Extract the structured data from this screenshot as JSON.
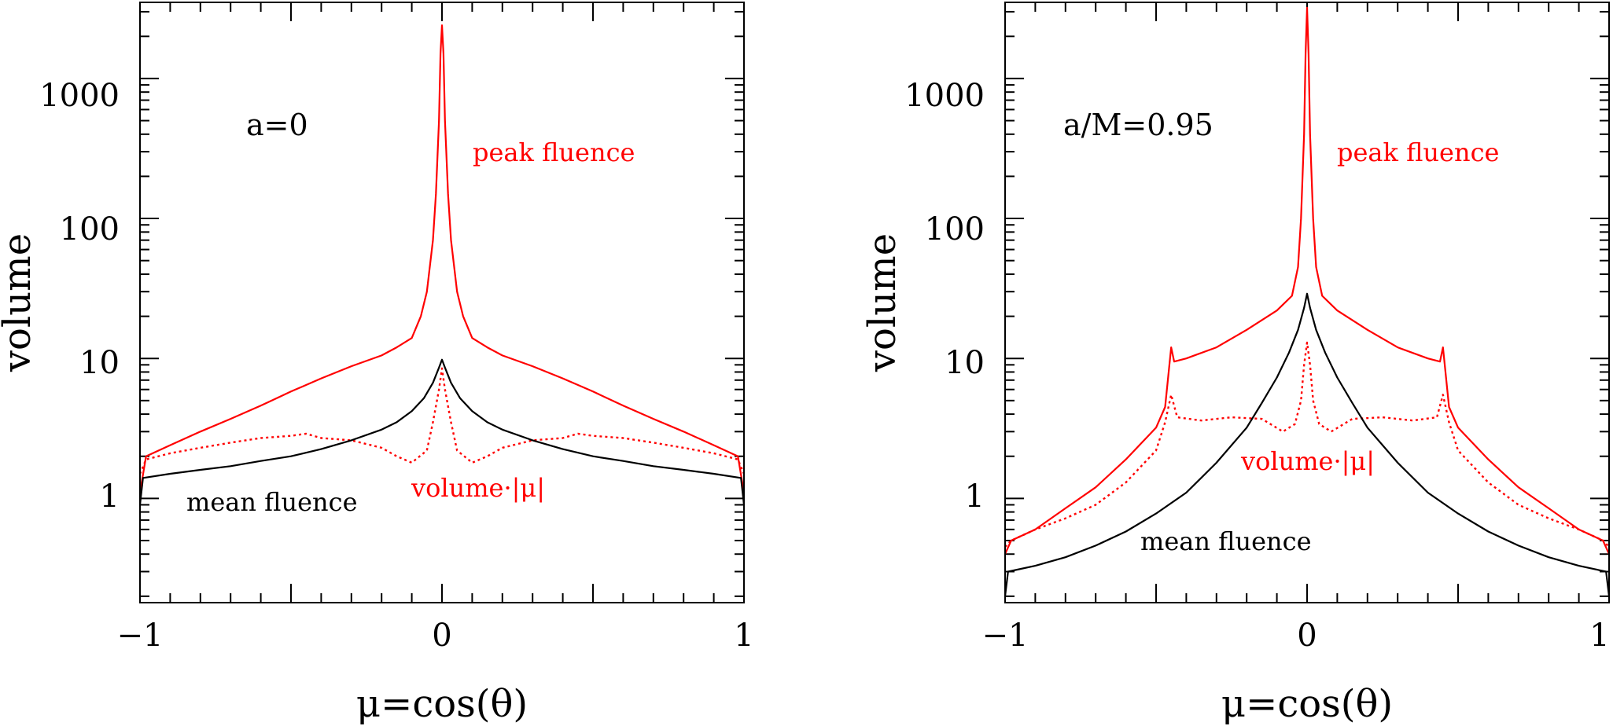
{
  "chart_data": [
    {
      "type": "line",
      "panel_label": "a=0",
      "ylabel": "volume",
      "xlabel": "μ=cos(θ)",
      "yscale": "log",
      "xlim": [
        -1,
        1
      ],
      "ylim": [
        0.18,
        3500
      ],
      "x_ticks": [
        "−1",
        "0",
        "1"
      ],
      "y_ticks": [
        "1",
        "10",
        "100",
        "1000"
      ],
      "annotations": {
        "peak": "peak fluence",
        "mean": "mean fluence",
        "volmu": "volume·|μ|"
      },
      "series": [
        {
          "name": "peak fluence",
          "color": "#ff0000",
          "style": "solid",
          "x": [
            -1,
            -0.98,
            -0.9,
            -0.8,
            -0.7,
            -0.6,
            -0.5,
            -0.4,
            -0.3,
            -0.2,
            -0.15,
            -0.1,
            -0.07,
            -0.05,
            -0.03,
            -0.02,
            -0.01,
            -0.005,
            0,
            0.005,
            0.01,
            0.02,
            0.03,
            0.05,
            0.07,
            0.1,
            0.15,
            0.2,
            0.3,
            0.4,
            0.5,
            0.6,
            0.7,
            0.8,
            0.9,
            0.98,
            1
          ],
          "y": [
            1.1,
            2.0,
            2.4,
            3.0,
            3.7,
            4.6,
            5.8,
            7.2,
            8.8,
            10.5,
            12,
            14,
            20,
            30,
            70,
            150,
            500,
            1500,
            2400,
            1500,
            500,
            150,
            70,
            30,
            20,
            14,
            12,
            10.5,
            8.8,
            7.2,
            5.8,
            4.6,
            3.7,
            3.0,
            2.4,
            2.0,
            1.1
          ]
        },
        {
          "name": "volume·|μ|",
          "color": "#ff0000",
          "style": "dotted",
          "x": [
            -1,
            -0.98,
            -0.9,
            -0.8,
            -0.7,
            -0.6,
            -0.5,
            -0.45,
            -0.4,
            -0.3,
            -0.2,
            -0.15,
            -0.1,
            -0.05,
            -0.03,
            -0.01,
            0,
            0.01,
            0.03,
            0.05,
            0.1,
            0.15,
            0.2,
            0.3,
            0.4,
            0.45,
            0.5,
            0.6,
            0.7,
            0.8,
            0.9,
            0.98,
            1
          ],
          "y": [
            1.5,
            1.9,
            2.1,
            2.3,
            2.5,
            2.7,
            2.8,
            2.9,
            2.7,
            2.6,
            2.3,
            2.0,
            1.8,
            2.2,
            3.5,
            6,
            8.5,
            6,
            3.5,
            2.2,
            1.8,
            2.0,
            2.3,
            2.6,
            2.7,
            2.9,
            2.8,
            2.7,
            2.5,
            2.3,
            2.1,
            1.9,
            1.5
          ]
        },
        {
          "name": "mean fluence",
          "color": "#000000",
          "style": "solid",
          "x": [
            -1,
            -0.99,
            -0.9,
            -0.8,
            -0.7,
            -0.6,
            -0.5,
            -0.4,
            -0.3,
            -0.2,
            -0.15,
            -0.1,
            -0.06,
            -0.03,
            -0.01,
            0,
            0.01,
            0.03,
            0.06,
            0.1,
            0.15,
            0.2,
            0.3,
            0.4,
            0.5,
            0.6,
            0.7,
            0.8,
            0.9,
            0.99,
            1
          ],
          "y": [
            0.9,
            1.4,
            1.5,
            1.6,
            1.7,
            1.85,
            2.0,
            2.25,
            2.6,
            3.1,
            3.5,
            4.2,
            5.2,
            6.7,
            8.6,
            9.8,
            8.6,
            6.7,
            5.2,
            4.2,
            3.5,
            3.1,
            2.6,
            2.25,
            2.0,
            1.85,
            1.7,
            1.6,
            1.5,
            1.4,
            0.9
          ]
        }
      ]
    },
    {
      "type": "line",
      "panel_label": "a/M=0.95",
      "ylabel": "volume",
      "xlabel": "μ=cos(θ)",
      "yscale": "log",
      "xlim": [
        -1,
        1
      ],
      "ylim": [
        0.18,
        3500
      ],
      "x_ticks": [
        "−1",
        "0",
        "1"
      ],
      "y_ticks": [
        "1",
        "10",
        "100",
        "1000"
      ],
      "annotations": {
        "peak": "peak fluence",
        "mean": "mean fluence",
        "volmu": "volume·|μ|"
      },
      "series": [
        {
          "name": "peak fluence",
          "color": "#ff0000",
          "style": "solid",
          "x": [
            -1,
            -0.98,
            -0.9,
            -0.8,
            -0.7,
            -0.6,
            -0.5,
            -0.47,
            -0.45,
            -0.44,
            -0.4,
            -0.3,
            -0.2,
            -0.1,
            -0.05,
            -0.03,
            -0.02,
            -0.01,
            -0.005,
            0,
            0.005,
            0.01,
            0.02,
            0.03,
            0.05,
            0.1,
            0.2,
            0.3,
            0.4,
            0.44,
            0.45,
            0.47,
            0.5,
            0.6,
            0.7,
            0.8,
            0.9,
            0.98,
            1
          ],
          "y": [
            0.4,
            0.5,
            0.6,
            0.85,
            1.2,
            1.9,
            3.2,
            4.5,
            12,
            9.5,
            10,
            12,
            16,
            22,
            28,
            45,
            100,
            400,
            1500,
            3200,
            1500,
            400,
            100,
            45,
            28,
            22,
            16,
            12,
            10,
            9.5,
            12,
            4.5,
            3.2,
            1.9,
            1.2,
            0.85,
            0.6,
            0.5,
            0.4
          ]
        },
        {
          "name": "volume·|μ|",
          "color": "#ff0000",
          "style": "dotted",
          "x": [
            -1,
            -0.98,
            -0.9,
            -0.8,
            -0.7,
            -0.6,
            -0.5,
            -0.47,
            -0.45,
            -0.43,
            -0.35,
            -0.25,
            -0.15,
            -0.08,
            -0.04,
            -0.02,
            -0.01,
            0,
            0.01,
            0.02,
            0.04,
            0.08,
            0.15,
            0.25,
            0.35,
            0.43,
            0.45,
            0.47,
            0.5,
            0.6,
            0.7,
            0.8,
            0.9,
            0.98,
            1
          ],
          "y": [
            0.45,
            0.5,
            0.6,
            0.72,
            0.9,
            1.3,
            2.2,
            3.5,
            5.5,
            3.8,
            3.6,
            3.8,
            3.7,
            3.0,
            3.4,
            5,
            9,
            13,
            9,
            5,
            3.4,
            3.0,
            3.7,
            3.8,
            3.6,
            3.8,
            5.5,
            3.5,
            2.2,
            1.3,
            0.9,
            0.72,
            0.6,
            0.5,
            0.45
          ]
        },
        {
          "name": "mean fluence",
          "color": "#000000",
          "style": "solid",
          "x": [
            -1,
            -0.99,
            -0.9,
            -0.8,
            -0.7,
            -0.6,
            -0.5,
            -0.4,
            -0.3,
            -0.2,
            -0.15,
            -0.1,
            -0.06,
            -0.03,
            -0.01,
            0,
            0.01,
            0.03,
            0.06,
            0.1,
            0.15,
            0.2,
            0.3,
            0.4,
            0.5,
            0.6,
            0.7,
            0.8,
            0.9,
            0.99,
            1
          ],
          "y": [
            0.2,
            0.3,
            0.33,
            0.38,
            0.46,
            0.58,
            0.78,
            1.1,
            1.8,
            3.2,
            4.8,
            7.3,
            11,
            16,
            23,
            29,
            23,
            16,
            11,
            7.3,
            4.8,
            3.2,
            1.8,
            1.1,
            0.78,
            0.58,
            0.46,
            0.38,
            0.33,
            0.3,
            0.2
          ]
        }
      ]
    }
  ]
}
